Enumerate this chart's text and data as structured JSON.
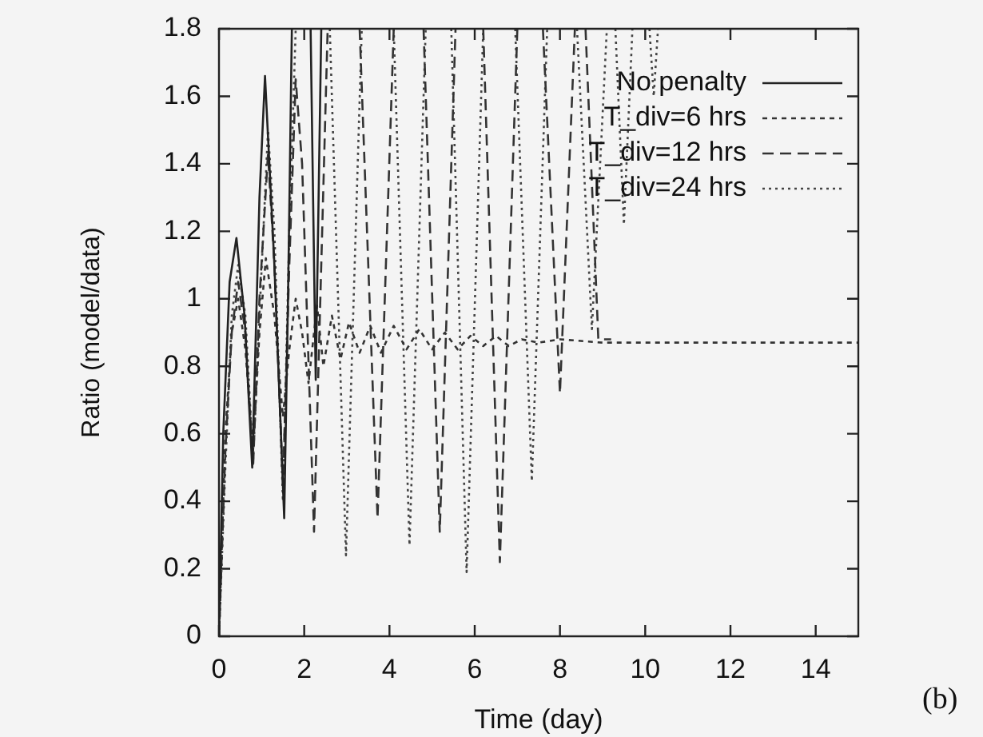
{
  "chart_data": {
    "type": "line",
    "xlabel": "Time (day)",
    "ylabel": "Ratio (model/data)",
    "xlim": [
      0,
      15
    ],
    "xticks": [
      0,
      2,
      4,
      6,
      8,
      10,
      12,
      14
    ],
    "ylim": [
      0,
      1.8
    ],
    "yticks": [
      0,
      0.2,
      0.4,
      0.6,
      0.8,
      1,
      1.2,
      1.4,
      1.6,
      1.8
    ],
    "grid": false,
    "legend": "top right",
    "marker": "none",
    "annotations": [
      "(b)"
    ],
    "series": [
      {
        "name": "No penalty",
        "color": "#222222",
        "line_style": "solid",
        "x": [
          0,
          0.1,
          0.25,
          0.41,
          0.6,
          0.78,
          0.95,
          1.08,
          1.3,
          1.53,
          1.62,
          1.71,
          1.9,
          2.15,
          2.27,
          2.4
        ],
        "values": [
          0,
          0.6,
          1.05,
          1.18,
          0.95,
          0.5,
          1.3,
          1.66,
          1.1,
          0.35,
          1.0,
          1.8,
          null,
          1.8,
          0.76,
          1.8
        ]
      },
      {
        "name": "T_div=6 hrs",
        "color": "#333333",
        "line_style": "dashed",
        "x": [
          0,
          0.15,
          0.3,
          0.45,
          0.62,
          0.8,
          0.95,
          1.1,
          1.3,
          1.5,
          1.65,
          1.8,
          1.95,
          2.1,
          2.3,
          2.45,
          2.65,
          2.85,
          3.05,
          3.3,
          3.55,
          3.8,
          4.1,
          4.4,
          4.7,
          5,
          5.3,
          5.6,
          5.9,
          6.2,
          6.5,
          6.8,
          7.1,
          7.5,
          8,
          9,
          10,
          12,
          15
        ],
        "values": [
          0,
          0.6,
          0.9,
          1,
          0.85,
          0.55,
          0.9,
          1.12,
          0.95,
          0.65,
          0.85,
          1,
          0.9,
          0.75,
          0.98,
          0.8,
          0.95,
          0.82,
          0.93,
          0.84,
          0.92,
          0.84,
          0.92,
          0.85,
          0.91,
          0.85,
          0.9,
          0.85,
          0.89,
          0.86,
          0.89,
          0.86,
          0.88,
          0.87,
          0.88,
          0.87,
          0.87,
          0.87,
          0.87
        ]
      },
      {
        "name": "T_div=12 hrs",
        "color": "#333333",
        "line_style": "dashed",
        "x": [
          0,
          0.15,
          0.3,
          0.45,
          0.62,
          0.8,
          0.95,
          1.15,
          1.3,
          1.5,
          1.65,
          1.8,
          1.95,
          2.23,
          2.55,
          2.9,
          3.3,
          3.72,
          4.1,
          4.4,
          4.8,
          5.18,
          5.55,
          5.9,
          6.2,
          6.59,
          7,
          7.3,
          7.6,
          8,
          8.35,
          8.5,
          8.6,
          8.9,
          9.2
        ],
        "values": [
          0,
          0.55,
          0.9,
          1.05,
          0.9,
          0.5,
          1,
          1.43,
          1.1,
          0.45,
          1.1,
          1.65,
          1.4,
          0.31,
          1.8,
          null,
          1.8,
          0.35,
          1.8,
          null,
          1.8,
          0.31,
          1.8,
          null,
          1.8,
          0.22,
          1.8,
          null,
          1.8,
          0.72,
          1.8,
          null,
          1.8,
          0.88,
          0.88
        ]
      },
      {
        "name": "T_div=24 hrs",
        "color": "#444444",
        "line_style": "dotted",
        "x": [
          0,
          0.15,
          0.3,
          0.45,
          0.62,
          0.8,
          0.95,
          1.15,
          1.3,
          1.5,
          1.65,
          1.8,
          2.2,
          2.6,
          2.98,
          3.35,
          3.7,
          4.1,
          4.47,
          4.85,
          5.1,
          5.45,
          5.81,
          6.2,
          6.6,
          6.95,
          7.34,
          7.7,
          8.1,
          8.4,
          8.75,
          9.1,
          9.2,
          9.3,
          9.5,
          9.7,
          9.9,
          10.1,
          10.2,
          10.3
        ],
        "values": [
          0,
          0.5,
          0.95,
          1.1,
          0.95,
          0.52,
          0.95,
          1.5,
          1.2,
          0.4,
          1.2,
          1.8,
          null,
          1.8,
          0.24,
          1.8,
          null,
          1.8,
          0.27,
          1.8,
          null,
          1.8,
          0.19,
          1.8,
          null,
          1.8,
          0.46,
          1.8,
          null,
          1.8,
          0.91,
          1.8,
          null,
          1.8,
          1.22,
          1.8,
          null,
          1.8,
          1.6,
          1.8
        ]
      }
    ]
  }
}
